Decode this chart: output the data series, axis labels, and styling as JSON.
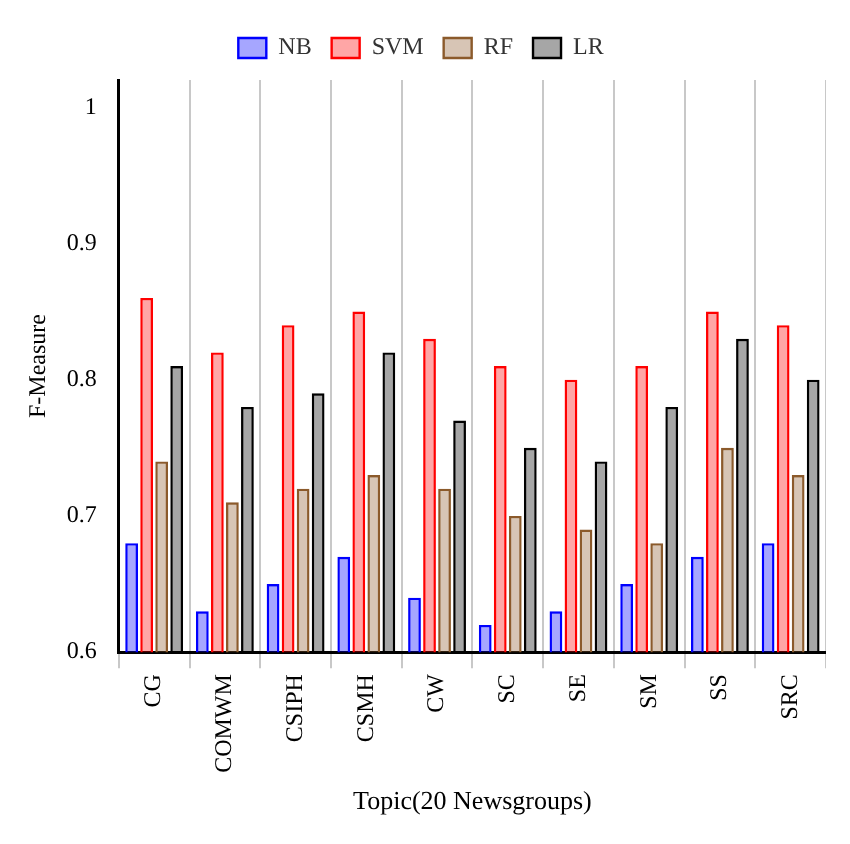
{
  "chart_data": {
    "type": "bar",
    "xlabel": "Topic(20 Newsgroups)",
    "ylabel": "F-Measure",
    "categories": [
      "CG",
      "COMWM",
      "CSIPH",
      "CSMH",
      "CW",
      "SC",
      "SE",
      "SM",
      "SS",
      "SRC"
    ],
    "series": [
      {
        "name": "NB",
        "color": "#0000ff",
        "values": [
          0.68,
          0.63,
          0.65,
          0.67,
          0.64,
          0.62,
          0.63,
          0.65,
          0.67,
          0.68
        ]
      },
      {
        "name": "SVM",
        "color": "#ff0000",
        "values": [
          0.86,
          0.82,
          0.84,
          0.85,
          0.83,
          0.81,
          0.8,
          0.81,
          0.85,
          0.84
        ]
      },
      {
        "name": "RF",
        "color": "#8b5a2b",
        "values": [
          0.74,
          0.71,
          0.72,
          0.73,
          0.72,
          0.7,
          0.69,
          0.68,
          0.75,
          0.73
        ]
      },
      {
        "name": "LR",
        "color": "#000000",
        "values": [
          0.81,
          0.78,
          0.79,
          0.82,
          0.77,
          0.75,
          0.74,
          0.78,
          0.83,
          0.8
        ]
      }
    ],
    "ylim": [
      0.6,
      1.02
    ],
    "yticks": [
      0.6,
      0.7,
      0.8,
      0.9,
      1
    ],
    "grid": "x",
    "legend": "top"
  }
}
